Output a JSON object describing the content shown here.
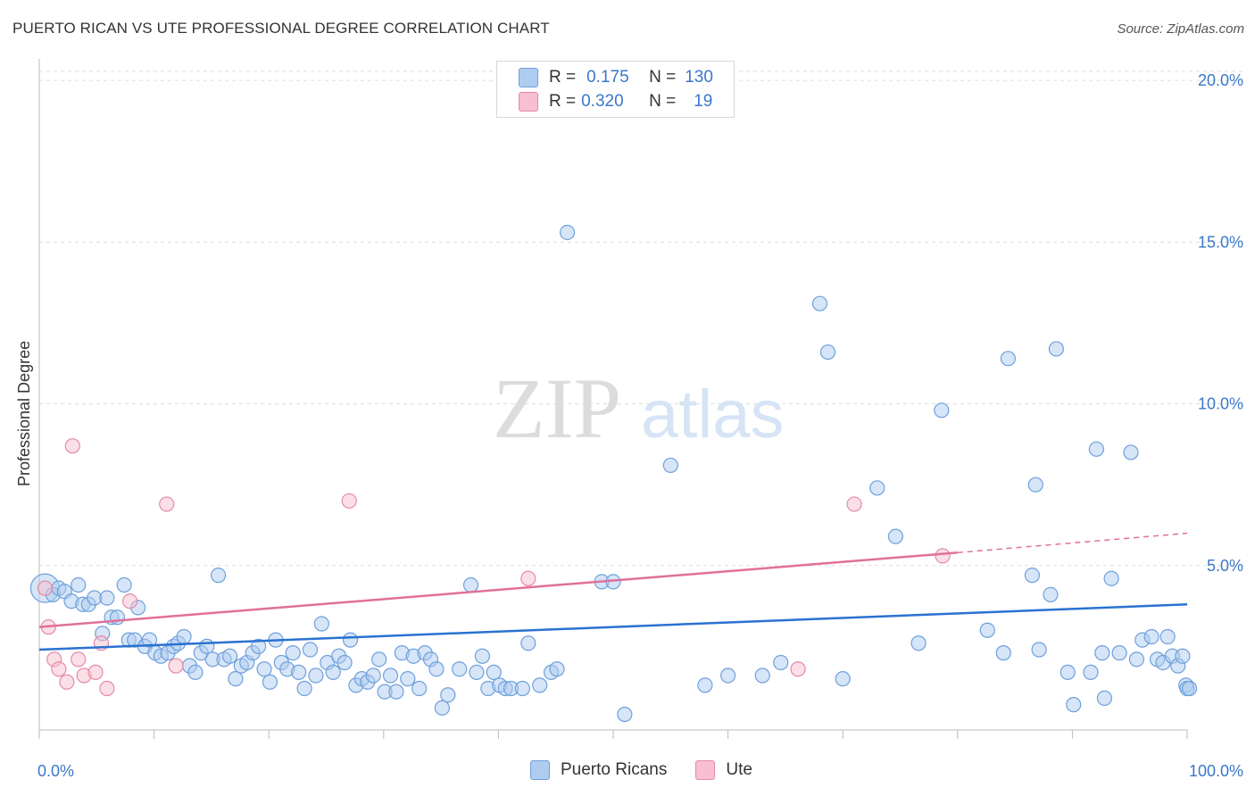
{
  "header": {
    "title": "PUERTO RICAN VS UTE PROFESSIONAL DEGREE CORRELATION CHART",
    "source": "Source: ZipAtlas.com"
  },
  "watermark": {
    "zip": "ZIP",
    "atlas": "atlas"
  },
  "legend": {
    "rows": [
      {
        "r_label": "R =",
        "r_value": "0.175",
        "n_label": "N =",
        "n_value": "130",
        "color": "#aecbf0"
      },
      {
        "r_label": "R =",
        "r_value": "0.320",
        "n_label": "N =",
        "n_value": "19",
        "color": "#f7bfd0"
      }
    ]
  },
  "bottom_legend": {
    "series1": "Puerto Ricans",
    "series2": "Ute"
  },
  "chart_data": {
    "type": "scatter",
    "title": "PUERTO RICAN VS UTE PROFESSIONAL DEGREE CORRELATION CHART",
    "xlabel": "",
    "ylabel": "Professional Degree",
    "xlim": [
      0,
      100
    ],
    "ylim": [
      0,
      20.5
    ],
    "y_ticks": [
      5,
      10,
      15,
      20
    ],
    "y_tick_labels": [
      "5.0%",
      "10.0%",
      "15.0%",
      "20.0%"
    ],
    "x_tick_labels": [
      "0.0%",
      "100.0%"
    ],
    "grid": "horizontal dashed",
    "series": [
      {
        "name": "Puerto Ricans",
        "color": "#aecbf0",
        "stroke": "#6fa0dc",
        "trend": {
          "x0": 0,
          "y0": 2.4,
          "x1": 100,
          "y1": 3.8,
          "color": "#2a72d0"
        },
        "points": [
          [
            0.5,
            4.3
          ],
          [
            1.2,
            4.1
          ],
          [
            1.7,
            4.3
          ],
          [
            2.2,
            4.2
          ],
          [
            2.8,
            3.9
          ],
          [
            3.4,
            4.4
          ],
          [
            3.8,
            3.8
          ],
          [
            4.3,
            3.8
          ],
          [
            4.8,
            4.0
          ],
          [
            5.5,
            2.9
          ],
          [
            5.9,
            4.0
          ],
          [
            6.3,
            3.4
          ],
          [
            6.8,
            3.4
          ],
          [
            7.4,
            4.4
          ],
          [
            7.8,
            2.7
          ],
          [
            8.3,
            2.7
          ],
          [
            8.6,
            3.7
          ],
          [
            9.2,
            2.5
          ],
          [
            9.6,
            2.7
          ],
          [
            10.1,
            2.3
          ],
          [
            10.6,
            2.2
          ],
          [
            11.2,
            2.3
          ],
          [
            11.7,
            2.5
          ],
          [
            12.1,
            2.6
          ],
          [
            12.6,
            2.8
          ],
          [
            13.1,
            1.9
          ],
          [
            13.6,
            1.7
          ],
          [
            14.1,
            2.3
          ],
          [
            14.6,
            2.5
          ],
          [
            15.1,
            2.1
          ],
          [
            15.6,
            4.7
          ],
          [
            16.1,
            2.1
          ],
          [
            16.6,
            2.2
          ],
          [
            17.1,
            1.5
          ],
          [
            17.6,
            1.9
          ],
          [
            18.1,
            2.0
          ],
          [
            18.6,
            2.3
          ],
          [
            19.1,
            2.5
          ],
          [
            19.6,
            1.8
          ],
          [
            20.1,
            1.4
          ],
          [
            20.6,
            2.7
          ],
          [
            21.1,
            2.0
          ],
          [
            21.6,
            1.8
          ],
          [
            22.1,
            2.3
          ],
          [
            22.6,
            1.7
          ],
          [
            23.1,
            1.2
          ],
          [
            23.6,
            2.4
          ],
          [
            24.1,
            1.6
          ],
          [
            24.6,
            3.2
          ],
          [
            25.1,
            2.0
          ],
          [
            25.6,
            1.7
          ],
          [
            26.1,
            2.2
          ],
          [
            26.6,
            2.0
          ],
          [
            27.1,
            2.7
          ],
          [
            27.6,
            1.3
          ],
          [
            28.1,
            1.5
          ],
          [
            28.6,
            1.4
          ],
          [
            29.1,
            1.6
          ],
          [
            29.6,
            2.1
          ],
          [
            30.1,
            1.1
          ],
          [
            30.6,
            1.6
          ],
          [
            31.1,
            1.1
          ],
          [
            31.6,
            2.3
          ],
          [
            32.1,
            1.5
          ],
          [
            32.6,
            2.2
          ],
          [
            33.1,
            1.2
          ],
          [
            33.6,
            2.3
          ],
          [
            34.1,
            2.1
          ],
          [
            34.6,
            1.8
          ],
          [
            35.1,
            0.6
          ],
          [
            35.6,
            1.0
          ],
          [
            36.6,
            1.8
          ],
          [
            37.6,
            4.4
          ],
          [
            38.1,
            1.7
          ],
          [
            38.6,
            2.2
          ],
          [
            39.1,
            1.2
          ],
          [
            39.6,
            1.7
          ],
          [
            40.1,
            1.3
          ],
          [
            40.6,
            1.2
          ],
          [
            41.1,
            1.2
          ],
          [
            42.1,
            1.2
          ],
          [
            42.6,
            2.6
          ],
          [
            43.6,
            1.3
          ],
          [
            44.6,
            1.7
          ],
          [
            45.1,
            1.8
          ],
          [
            46.0,
            15.3
          ],
          [
            49.0,
            4.5
          ],
          [
            51.0,
            0.4
          ],
          [
            55.0,
            8.1
          ],
          [
            58.0,
            1.3
          ],
          [
            63.0,
            1.6
          ],
          [
            64.6,
            2.0
          ],
          [
            68.0,
            13.1
          ],
          [
            68.7,
            11.6
          ],
          [
            70.0,
            1.5
          ],
          [
            73.0,
            7.4
          ],
          [
            74.6,
            5.9
          ],
          [
            76.6,
            2.6
          ],
          [
            78.6,
            9.8
          ],
          [
            82.6,
            3.0
          ],
          [
            84.4,
            11.4
          ],
          [
            86.5,
            4.7
          ],
          [
            86.8,
            7.5
          ],
          [
            87.1,
            2.4
          ],
          [
            88.1,
            4.1
          ],
          [
            88.6,
            11.7
          ],
          [
            89.6,
            1.7
          ],
          [
            90.1,
            0.7
          ],
          [
            91.6,
            1.7
          ],
          [
            92.1,
            8.6
          ],
          [
            92.6,
            2.3
          ],
          [
            93.4,
            4.6
          ],
          [
            94.1,
            2.3
          ],
          [
            95.1,
            8.5
          ],
          [
            95.6,
            2.1
          ],
          [
            96.1,
            2.7
          ],
          [
            96.9,
            2.8
          ],
          [
            97.4,
            2.1
          ],
          [
            97.9,
            2.0
          ],
          [
            98.3,
            2.8
          ],
          [
            98.7,
            2.2
          ],
          [
            99.2,
            1.9
          ],
          [
            99.6,
            2.2
          ],
          [
            99.9,
            1.3
          ],
          [
            100.0,
            1.2
          ],
          [
            100.2,
            1.2
          ],
          [
            92.8,
            0.9
          ],
          [
            84.0,
            2.3
          ],
          [
            60.0,
            1.6
          ],
          [
            50.0,
            4.5
          ]
        ]
      },
      {
        "name": "Ute",
        "color": "#f7bfd0",
        "stroke": "#e58aa6",
        "trend": {
          "x0": 0,
          "y0": 3.1,
          "x1": 80,
          "y1": 5.4,
          "x_dash_end": 100,
          "y_dash_end": 6.0,
          "color": "#e0709a"
        },
        "points": [
          [
            0.5,
            4.3
          ],
          [
            0.8,
            3.1
          ],
          [
            1.3,
            2.1
          ],
          [
            1.7,
            1.8
          ],
          [
            2.4,
            1.4
          ],
          [
            2.9,
            8.7
          ],
          [
            3.4,
            2.1
          ],
          [
            3.9,
            1.6
          ],
          [
            4.9,
            1.7
          ],
          [
            5.4,
            2.6
          ],
          [
            5.9,
            1.2
          ],
          [
            7.9,
            3.9
          ],
          [
            11.1,
            6.9
          ],
          [
            11.9,
            1.9
          ],
          [
            27.0,
            7.0
          ],
          [
            42.6,
            4.6
          ],
          [
            66.1,
            1.8
          ],
          [
            71.0,
            6.9
          ],
          [
            78.7,
            5.3
          ]
        ]
      }
    ]
  }
}
